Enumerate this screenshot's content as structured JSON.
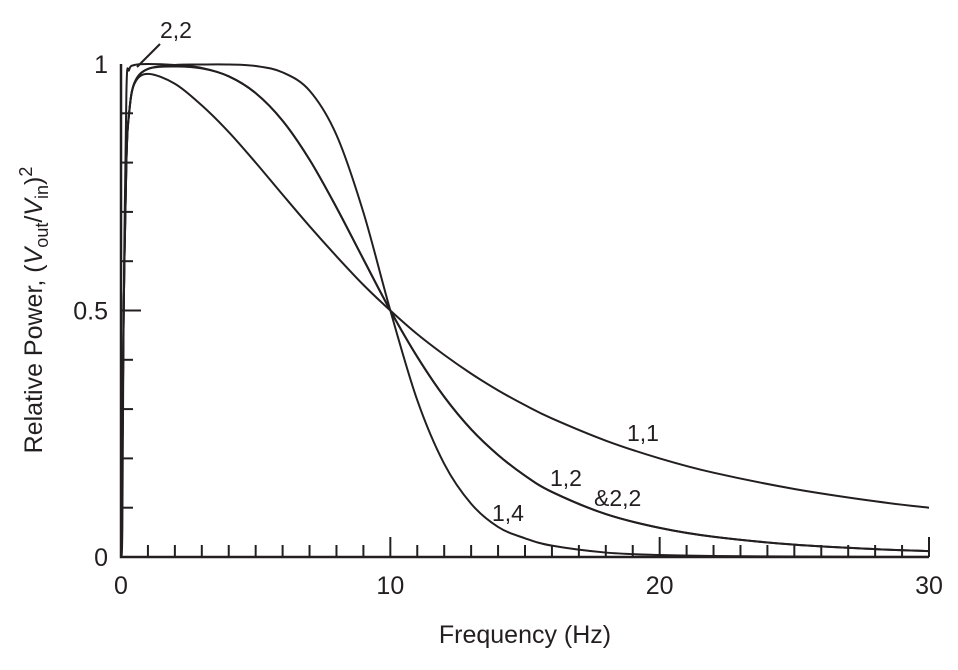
{
  "chart_data": {
    "type": "line",
    "title": "",
    "xlabel": "Frequency (Hz)",
    "ylabel_parts": {
      "prefix": "Relative Power, (",
      "v1": "V",
      "sub1": "out",
      "slash": "/",
      "v2": "V",
      "sub2": "in",
      "suffix": ")",
      "sup": "2"
    },
    "xlim": [
      0,
      30
    ],
    "ylim": [
      0,
      1
    ],
    "x_ticks": [
      "0",
      "10",
      "20",
      "30"
    ],
    "x_tick_values": [
      0,
      10,
      20,
      30
    ],
    "x_minor_step": 1,
    "y_ticks": [
      "0",
      "0.5",
      "1"
    ],
    "y_tick_values": [
      0,
      0.5,
      1
    ],
    "y_minor_step": 0.1,
    "grid": false,
    "line_color": "#231f20",
    "x": [
      0,
      0.05,
      0.1,
      0.2,
      0.3,
      0.5,
      1,
      2,
      3,
      4,
      5,
      6,
      7,
      8,
      9,
      10,
      11,
      12,
      13,
      14,
      15,
      16,
      18,
      20,
      22,
      25,
      28,
      30
    ],
    "series": [
      {
        "name": "1,1",
        "values": [
          0,
          0.2,
          0.5,
          0.8,
          0.899,
          0.96,
          0.98,
          0.96,
          0.916,
          0.862,
          0.8,
          0.735,
          0.671,
          0.61,
          0.552,
          0.5,
          0.452,
          0.41,
          0.372,
          0.338,
          0.308,
          0.281,
          0.236,
          0.2,
          0.171,
          0.138,
          0.113,
          0.1
        ]
      },
      {
        "name": "1,2",
        "values": [
          0,
          0.2,
          0.5,
          0.8,
          0.9,
          0.962,
          0.99,
          0.995,
          0.991,
          0.975,
          0.941,
          0.885,
          0.806,
          0.709,
          0.604,
          0.5,
          0.406,
          0.325,
          0.259,
          0.207,
          0.165,
          0.132,
          0.087,
          0.059,
          0.041,
          0.025,
          0.016,
          0.012
        ]
      },
      {
        "name": "2,2",
        "values": [
          0,
          0.059,
          0.5,
          0.941,
          0.988,
          0.998,
          1.0,
          0.998,
          0.992,
          0.975,
          0.941,
          0.885,
          0.806,
          0.709,
          0.604,
          0.5,
          0.406,
          0.325,
          0.259,
          0.207,
          0.165,
          0.132,
          0.087,
          0.059,
          0.041,
          0.025,
          0.016,
          0.012
        ]
      },
      {
        "name": "1,4",
        "values": [
          0,
          0.2,
          0.5,
          0.8,
          0.9,
          0.962,
          0.99,
          0.998,
          0.999,
          0.999,
          0.996,
          0.983,
          0.946,
          0.856,
          0.699,
          0.5,
          0.318,
          0.189,
          0.108,
          0.061,
          0.038,
          0.023,
          0.009,
          0.004,
          0.002,
          0.001,
          0.0003,
          0.0002
        ]
      }
    ],
    "annotations": {
      "label_22_top": "2,2",
      "label_11": "1,1",
      "label_12": "1,2",
      "label_and22": "&2,2",
      "label_14": "1,4"
    }
  }
}
